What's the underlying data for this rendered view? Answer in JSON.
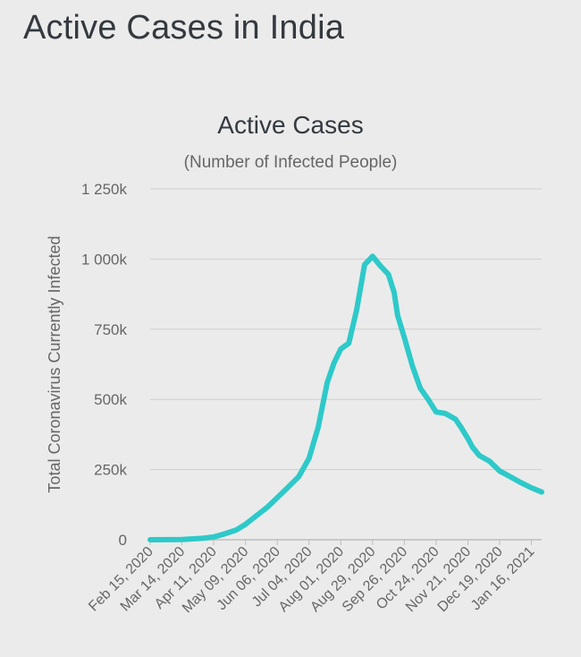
{
  "page": {
    "heading": "Active Cases in India"
  },
  "colors": {
    "background": "#ebebeb",
    "line": "#2ec9c9",
    "grid": "#cfcfcf",
    "text": "#333a40",
    "axis_text": "#666666"
  },
  "chart_data": {
    "type": "line",
    "title": "Active Cases",
    "subtitle": "(Number of Infected People)",
    "xlabel": "",
    "ylabel": "Total Coronavirus Currently Infected",
    "ylim": [
      0,
      1250000
    ],
    "y_ticks": [
      0,
      250000,
      500000,
      750000,
      1000000,
      1250000
    ],
    "y_tick_labels": [
      "0",
      "250k",
      "500k",
      "750k",
      "1 000k",
      "1 250k"
    ],
    "x_tick_labels": [
      "Feb 15, 2020",
      "Mar 14, 2020",
      "Apr 11, 2020",
      "May 09, 2020",
      "Jun 06, 2020",
      "Jul 04, 2020",
      "Aug 01, 2020",
      "Aug 29, 2020",
      "Sep 26, 2020",
      "Oct 24, 2020",
      "Nov 21, 2020",
      "Dec 19, 2020",
      "Jan 16, 2021"
    ],
    "grid": true,
    "legend": "none",
    "series": [
      {
        "x": [
          "2020-02-15",
          "2020-03-14",
          "2020-04-01",
          "2020-04-11",
          "2020-04-20",
          "2020-05-01",
          "2020-05-09",
          "2020-05-20",
          "2020-05-28",
          "2020-06-06",
          "2020-06-15",
          "2020-06-25",
          "2020-07-04",
          "2020-07-12",
          "2020-07-20",
          "2020-07-26",
          "2020-08-01",
          "2020-08-08",
          "2020-08-15",
          "2020-08-22",
          "2020-08-29",
          "2020-09-05",
          "2020-09-12",
          "2020-09-17",
          "2020-09-20",
          "2020-09-26",
          "2020-10-03",
          "2020-10-10",
          "2020-10-17",
          "2020-10-24",
          "2020-11-01",
          "2020-11-10",
          "2020-11-15",
          "2020-11-21",
          "2020-11-25",
          "2020-12-01",
          "2020-12-10",
          "2020-12-19",
          "2020-12-28",
          "2021-01-06",
          "2021-01-16",
          "2021-01-25"
        ],
        "y": [
          0,
          1000,
          5000,
          10000,
          20000,
          35000,
          55000,
          90000,
          115000,
          150000,
          185000,
          225000,
          290000,
          400000,
          560000,
          630000,
          680000,
          700000,
          820000,
          980000,
          1010000,
          975000,
          945000,
          880000,
          800000,
          720000,
          620000,
          540000,
          500000,
          455000,
          450000,
          430000,
          400000,
          360000,
          330000,
          300000,
          280000,
          245000,
          225000,
          205000,
          185000,
          170000
        ]
      }
    ]
  }
}
